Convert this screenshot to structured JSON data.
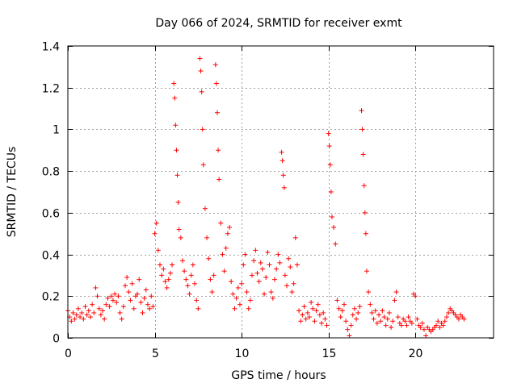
{
  "chart_data": {
    "type": "scatter",
    "title": "Day 066 of 2024, SRMTID for receiver exmt",
    "xlabel": "GPS time / hours",
    "ylabel": "SRMTID / TECUs",
    "xlim": [
      0,
      24.5
    ],
    "ylim": [
      0,
      1.4
    ],
    "x_ticks": [
      0,
      5,
      10,
      15,
      20
    ],
    "y_ticks": [
      0,
      0.2,
      0.4,
      0.6,
      0.8,
      1,
      1.2,
      1.4
    ],
    "x_tick_labels": [
      "0",
      "5",
      "10",
      "15",
      "20"
    ],
    "y_tick_labels": [
      "0",
      "0.2",
      "0.4",
      "0.6",
      "0.8",
      "1",
      "1.2",
      "1.4"
    ],
    "grid": true,
    "marker": "+",
    "color": "#ff0000",
    "series": [
      {
        "name": "SRMTID",
        "description": "estimated envelope of dense scatter; values in TECU",
        "points": [
          [
            0.0,
            0.13
          ],
          [
            0.1,
            0.1
          ],
          [
            0.2,
            0.08
          ],
          [
            0.3,
            0.12
          ],
          [
            0.4,
            0.09
          ],
          [
            0.5,
            0.11
          ],
          [
            0.6,
            0.14
          ],
          [
            0.7,
            0.1
          ],
          [
            0.8,
            0.12
          ],
          [
            0.9,
            0.09
          ],
          [
            1.0,
            0.15
          ],
          [
            1.1,
            0.11
          ],
          [
            1.2,
            0.13
          ],
          [
            1.3,
            0.1
          ],
          [
            1.4,
            0.16
          ],
          [
            1.5,
            0.12
          ],
          [
            1.6,
            0.24
          ],
          [
            1.7,
            0.2
          ],
          [
            1.8,
            0.14
          ],
          [
            1.9,
            0.11
          ],
          [
            2.0,
            0.13
          ],
          [
            2.1,
            0.09
          ],
          [
            2.2,
            0.16
          ],
          [
            2.3,
            0.19
          ],
          [
            2.4,
            0.15
          ],
          [
            2.5,
            0.2
          ],
          [
            2.6,
            0.18
          ],
          [
            2.7,
            0.21
          ],
          [
            2.8,
            0.17
          ],
          [
            2.9,
            0.2
          ],
          [
            3.0,
            0.12
          ],
          [
            3.1,
            0.09
          ],
          [
            3.2,
            0.15
          ],
          [
            3.3,
            0.25
          ],
          [
            3.4,
            0.29
          ],
          [
            3.5,
            0.22
          ],
          [
            3.6,
            0.18
          ],
          [
            3.7,
            0.26
          ],
          [
            3.8,
            0.14
          ],
          [
            3.9,
            0.2
          ],
          [
            4.0,
            0.21
          ],
          [
            4.1,
            0.28
          ],
          [
            4.2,
            0.17
          ],
          [
            4.3,
            0.12
          ],
          [
            4.4,
            0.19
          ],
          [
            4.5,
            0.23
          ],
          [
            4.6,
            0.16
          ],
          [
            4.7,
            0.14
          ],
          [
            4.8,
            0.2
          ],
          [
            4.9,
            0.15
          ],
          [
            5.0,
            0.5
          ],
          [
            5.1,
            0.55
          ],
          [
            5.2,
            0.42
          ],
          [
            5.3,
            0.35
          ],
          [
            5.4,
            0.3
          ],
          [
            5.5,
            0.33
          ],
          [
            5.6,
            0.27
          ],
          [
            5.7,
            0.24
          ],
          [
            5.8,
            0.28
          ],
          [
            5.9,
            0.31
          ],
          [
            6.0,
            0.35
          ],
          [
            6.1,
            1.22
          ],
          [
            6.15,
            1.15
          ],
          [
            6.2,
            1.02
          ],
          [
            6.25,
            0.9
          ],
          [
            6.3,
            0.78
          ],
          [
            6.35,
            0.65
          ],
          [
            6.4,
            0.52
          ],
          [
            6.5,
            0.48
          ],
          [
            6.6,
            0.37
          ],
          [
            6.7,
            0.32
          ],
          [
            6.8,
            0.28
          ],
          [
            6.9,
            0.25
          ],
          [
            7.0,
            0.21
          ],
          [
            7.1,
            0.3
          ],
          [
            7.2,
            0.35
          ],
          [
            7.3,
            0.26
          ],
          [
            7.4,
            0.18
          ],
          [
            7.5,
            0.14
          ],
          [
            7.6,
            1.34
          ],
          [
            7.65,
            1.28
          ],
          [
            7.7,
            1.18
          ],
          [
            7.75,
            1.0
          ],
          [
            7.8,
            0.83
          ],
          [
            7.9,
            0.62
          ],
          [
            8.0,
            0.48
          ],
          [
            8.1,
            0.38
          ],
          [
            8.2,
            0.28
          ],
          [
            8.3,
            0.22
          ],
          [
            8.4,
            0.3
          ],
          [
            8.5,
            1.31
          ],
          [
            8.55,
            1.22
          ],
          [
            8.6,
            1.08
          ],
          [
            8.65,
            0.9
          ],
          [
            8.7,
            0.76
          ],
          [
            8.8,
            0.55
          ],
          [
            8.9,
            0.4
          ],
          [
            9.0,
            0.32
          ],
          [
            9.1,
            0.43
          ],
          [
            9.2,
            0.5
          ],
          [
            9.3,
            0.53
          ],
          [
            9.4,
            0.27
          ],
          [
            9.5,
            0.21
          ],
          [
            9.6,
            0.14
          ],
          [
            9.7,
            0.19
          ],
          [
            9.8,
            0.24
          ],
          [
            9.9,
            0.16
          ],
          [
            10.0,
            0.26
          ],
          [
            10.1,
            0.35
          ],
          [
            10.2,
            0.4
          ],
          [
            10.3,
            0.22
          ],
          [
            10.4,
            0.14
          ],
          [
            10.5,
            0.18
          ],
          [
            10.6,
            0.3
          ],
          [
            10.7,
            0.37
          ],
          [
            10.8,
            0.42
          ],
          [
            10.9,
            0.31
          ],
          [
            11.0,
            0.27
          ],
          [
            11.1,
            0.36
          ],
          [
            11.2,
            0.33
          ],
          [
            11.3,
            0.21
          ],
          [
            11.4,
            0.29
          ],
          [
            11.5,
            0.41
          ],
          [
            11.6,
            0.35
          ],
          [
            11.7,
            0.22
          ],
          [
            11.8,
            0.19
          ],
          [
            11.9,
            0.28
          ],
          [
            12.0,
            0.33
          ],
          [
            12.1,
            0.4
          ],
          [
            12.2,
            0.36
          ],
          [
            12.3,
            0.89
          ],
          [
            12.35,
            0.85
          ],
          [
            12.4,
            0.78
          ],
          [
            12.45,
            0.72
          ],
          [
            12.5,
            0.3
          ],
          [
            12.6,
            0.25
          ],
          [
            12.7,
            0.38
          ],
          [
            12.8,
            0.34
          ],
          [
            12.9,
            0.22
          ],
          [
            13.0,
            0.26
          ],
          [
            13.1,
            0.48
          ],
          [
            13.2,
            0.35
          ],
          [
            13.3,
            0.13
          ],
          [
            13.4,
            0.08
          ],
          [
            13.5,
            0.11
          ],
          [
            13.6,
            0.15
          ],
          [
            13.7,
            0.09
          ],
          [
            13.8,
            0.12
          ],
          [
            13.9,
            0.1
          ],
          [
            14.0,
            0.17
          ],
          [
            14.1,
            0.14
          ],
          [
            14.2,
            0.08
          ],
          [
            14.3,
            0.13
          ],
          [
            14.4,
            0.16
          ],
          [
            14.5,
            0.11
          ],
          [
            14.6,
            0.07
          ],
          [
            14.7,
            0.12
          ],
          [
            14.8,
            0.09
          ],
          [
            14.9,
            0.06
          ],
          [
            15.0,
            0.98
          ],
          [
            15.05,
            0.92
          ],
          [
            15.1,
            0.83
          ],
          [
            15.15,
            0.7
          ],
          [
            15.2,
            0.58
          ],
          [
            15.3,
            0.53
          ],
          [
            15.4,
            0.45
          ],
          [
            15.5,
            0.18
          ],
          [
            15.6,
            0.14
          ],
          [
            15.7,
            0.1
          ],
          [
            15.8,
            0.13
          ],
          [
            15.9,
            0.16
          ],
          [
            16.0,
            0.08
          ],
          [
            16.1,
            0.04
          ],
          [
            16.2,
            0.01
          ],
          [
            16.3,
            0.06
          ],
          [
            16.4,
            0.11
          ],
          [
            16.5,
            0.14
          ],
          [
            16.6,
            0.09
          ],
          [
            16.7,
            0.12
          ],
          [
            16.8,
            0.15
          ],
          [
            16.9,
            1.09
          ],
          [
            16.95,
            1.0
          ],
          [
            17.0,
            0.88
          ],
          [
            17.05,
            0.73
          ],
          [
            17.1,
            0.6
          ],
          [
            17.15,
            0.5
          ],
          [
            17.2,
            0.32
          ],
          [
            17.3,
            0.22
          ],
          [
            17.4,
            0.16
          ],
          [
            17.5,
            0.12
          ],
          [
            17.6,
            0.09
          ],
          [
            17.7,
            0.13
          ],
          [
            17.8,
            0.07
          ],
          [
            17.9,
            0.11
          ],
          [
            18.0,
            0.08
          ],
          [
            18.1,
            0.13
          ],
          [
            18.2,
            0.1
          ],
          [
            18.3,
            0.06
          ],
          [
            18.4,
            0.09
          ],
          [
            18.5,
            0.12
          ],
          [
            18.6,
            0.05
          ],
          [
            18.7,
            0.08
          ],
          [
            18.8,
            0.18
          ],
          [
            18.9,
            0.22
          ],
          [
            19.0,
            0.1
          ],
          [
            19.1,
            0.07
          ],
          [
            19.2,
            0.06
          ],
          [
            19.3,
            0.09
          ],
          [
            19.4,
            0.08
          ],
          [
            19.5,
            0.06
          ],
          [
            19.6,
            0.1
          ],
          [
            19.7,
            0.08
          ],
          [
            19.8,
            0.07
          ],
          [
            19.9,
            0.21
          ],
          [
            20.0,
            0.2
          ],
          [
            20.1,
            0.09
          ],
          [
            20.2,
            0.06
          ],
          [
            20.3,
            0.05
          ],
          [
            20.4,
            0.07
          ],
          [
            20.5,
            0.04
          ],
          [
            20.6,
            0.01
          ],
          [
            20.7,
            0.05
          ],
          [
            20.8,
            0.04
          ],
          [
            20.9,
            0.03
          ],
          [
            21.0,
            0.04
          ],
          [
            21.1,
            0.05
          ],
          [
            21.2,
            0.06
          ],
          [
            21.3,
            0.08
          ],
          [
            21.4,
            0.05
          ],
          [
            21.5,
            0.07
          ],
          [
            21.6,
            0.06
          ],
          [
            21.7,
            0.08
          ],
          [
            21.8,
            0.1
          ],
          [
            21.9,
            0.12
          ],
          [
            22.0,
            0.14
          ],
          [
            22.1,
            0.13
          ],
          [
            22.2,
            0.12
          ],
          [
            22.3,
            0.11
          ],
          [
            22.4,
            0.1
          ],
          [
            22.5,
            0.09
          ],
          [
            22.6,
            0.11
          ],
          [
            22.7,
            0.1
          ],
          [
            22.8,
            0.09
          ]
        ]
      }
    ]
  }
}
